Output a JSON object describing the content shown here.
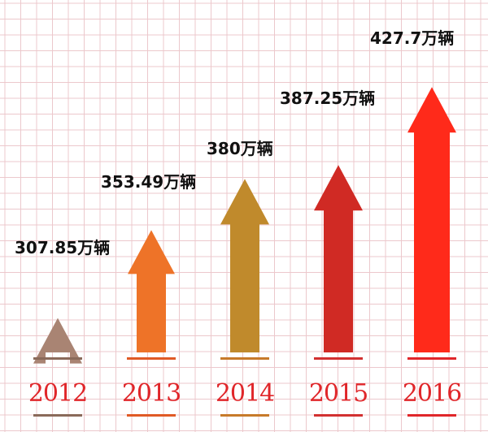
{
  "chart_data": {
    "type": "bar",
    "categories": [
      "2012",
      "2013",
      "2014",
      "2015",
      "2016"
    ],
    "values": [
      307.85,
      353.49,
      380,
      387.25,
      427.7
    ],
    "value_labels": [
      "307.85万辆",
      "353.49万辆",
      "380万辆",
      "387.25万辆",
      "427.7万辆"
    ],
    "title": "",
    "xlabel": "",
    "ylabel": "",
    "ylim": [
      290,
      440
    ],
    "grid": true,
    "legend": "none",
    "colors": [
      "#a98473",
      "#ee7328",
      "#c08a2c",
      "#d02a24",
      "#ff2a1a"
    ],
    "underline_colors": [
      "#8a6a5a",
      "#e05a25",
      "#c77a2a",
      "#d23030",
      "#e0262a"
    ],
    "background": "#ffffff",
    "grid_color": "#ecc8cc"
  }
}
